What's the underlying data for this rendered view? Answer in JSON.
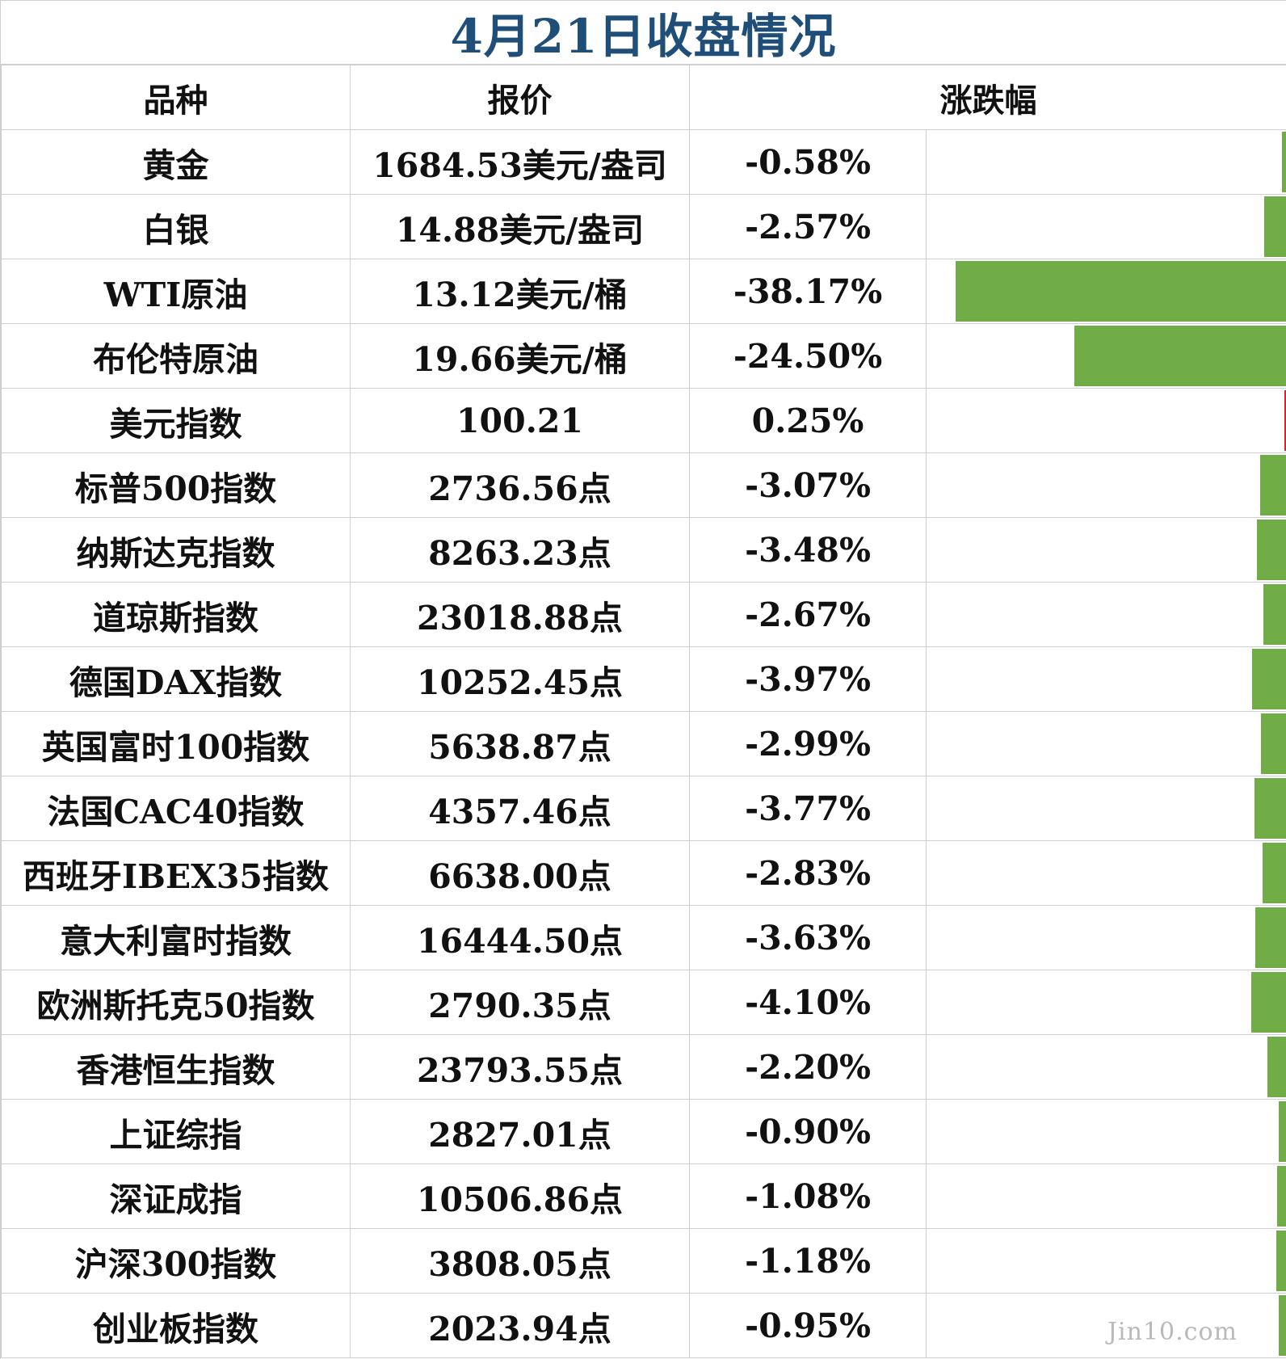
{
  "title": "4月21日收盘情况",
  "headers": {
    "name": "品种",
    "price": "报价",
    "change": "涨跌幅"
  },
  "colors": {
    "title": "#1f4e79",
    "negative_bar": "#70ad47",
    "positive_bar": "#e02020",
    "grid": "#cfcfcf"
  },
  "watermark": "Jin10.com",
  "chart_data": {
    "type": "table",
    "bar_column": "change",
    "bar_direction": "right-aligned",
    "rows": [
      {
        "name": "黄金",
        "price": "1684.53美元/盎司",
        "change_text": "-0.58%",
        "change": -0.58
      },
      {
        "name": "白银",
        "price": "14.88美元/盎司",
        "change_text": "-2.57%",
        "change": -2.57
      },
      {
        "name": "WTI原油",
        "price": "13.12美元/桶",
        "change_text": "-38.17%",
        "change": -38.17
      },
      {
        "name": "布伦特原油",
        "price": "19.66美元/桶",
        "change_text": "-24.50%",
        "change": -24.5
      },
      {
        "name": "美元指数",
        "price": "100.21",
        "change_text": "0.25%",
        "change": 0.25
      },
      {
        "name": "标普500指数",
        "price": "2736.56点",
        "change_text": "-3.07%",
        "change": -3.07
      },
      {
        "name": "纳斯达克指数",
        "price": "8263.23点",
        "change_text": "-3.48%",
        "change": -3.48
      },
      {
        "name": "道琼斯指数",
        "price": "23018.88点",
        "change_text": "-2.67%",
        "change": -2.67
      },
      {
        "name": "德国DAX指数",
        "price": "10252.45点",
        "change_text": "-3.97%",
        "change": -3.97
      },
      {
        "name": "英国富时100指数",
        "price": "5638.87点",
        "change_text": "-2.99%",
        "change": -2.99
      },
      {
        "name": "法国CAC40指数",
        "price": "4357.46点",
        "change_text": "-3.77%",
        "change": -3.77
      },
      {
        "name": "西班牙IBEX35指数",
        "price": "6638.00点",
        "change_text": "-2.83%",
        "change": -2.83
      },
      {
        "name": "意大利富时指数",
        "price": "16444.50点",
        "change_text": "-3.63%",
        "change": -3.63
      },
      {
        "name": "欧洲斯托克50指数",
        "price": "2790.35点",
        "change_text": "-4.10%",
        "change": -4.1
      },
      {
        "name": "香港恒生指数",
        "price": "23793.55点",
        "change_text": "-2.20%",
        "change": -2.2
      },
      {
        "name": "上证综指",
        "price": "2827.01点",
        "change_text": "-0.90%",
        "change": -0.9
      },
      {
        "name": "深证成指",
        "price": "10506.86点",
        "change_text": "-1.08%",
        "change": -1.08
      },
      {
        "name": "沪深300指数",
        "price": "3808.05点",
        "change_text": "-1.18%",
        "change": -1.18
      },
      {
        "name": "创业板指数",
        "price": "2023.94点",
        "change_text": "-0.95%",
        "change": -0.95
      }
    ]
  }
}
